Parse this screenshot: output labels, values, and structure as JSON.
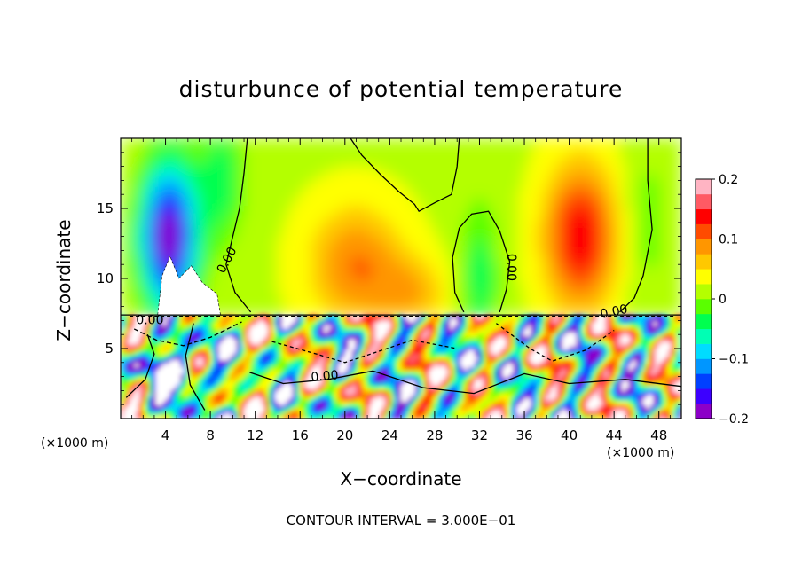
{
  "chart_data": {
    "type": "heatmap",
    "title": "disturbunce of potential temperature",
    "xlabel": "X−coordinate",
    "ylabel": "Z−coordinate",
    "x_unit_left": "(×1000 m)",
    "x_unit_right": "(×1000 m)",
    "footer": "CONTOUR INTERVAL = 3.000E−01",
    "xlim": [
      0,
      50
    ],
    "ylim": [
      0,
      20
    ],
    "x_ticks": [
      4,
      8,
      12,
      16,
      20,
      24,
      28,
      32,
      36,
      40,
      44,
      48
    ],
    "y_ticks": [
      5,
      10,
      15
    ],
    "grid": false,
    "colorbar": {
      "min": -0.2,
      "max": 0.2,
      "labels": [
        {
          "value": 0.2,
          "text": "0.2"
        },
        {
          "value": 0.1,
          "text": "0.1"
        },
        {
          "value": 0,
          "text": "0"
        },
        {
          "value": -0.1,
          "text": "−0.1"
        },
        {
          "value": -0.2,
          "text": "−0.2"
        }
      ],
      "colors": [
        "#8c00c8",
        "#3c00ff",
        "#0040ff",
        "#0096ff",
        "#00dcff",
        "#00ffb4",
        "#00ff50",
        "#5aff00",
        "#b4ff00",
        "#ffff00",
        "#ffc800",
        "#ff9600",
        "#ff4b00",
        "#ff0000",
        "#ff5a64",
        "#ffb4c3"
      ]
    },
    "contour_labels": [
      {
        "text": "0.00",
        "x": 9.5,
        "z": 11.3,
        "angle": -62
      },
      {
        "text": "0.00",
        "x": 34.8,
        "z": 10.8,
        "angle": 90
      },
      {
        "text": "0.00",
        "x": 44.0,
        "z": 7.6,
        "angle": -12
      },
      {
        "text": "0.00",
        "x": 18.2,
        "z": 3.0,
        "angle": -5
      },
      {
        "text": "0.00",
        "x": 2.6,
        "z": 7.0,
        "angle": 0
      }
    ]
  }
}
